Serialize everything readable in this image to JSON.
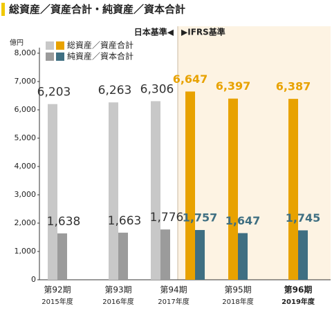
{
  "chart_data": {
    "type": "bar",
    "title": "総資産／資産合計・純資産／資本合計",
    "unit": "億円",
    "annotations": [
      "日本基準◀",
      "▶IFRS基準"
    ],
    "categories": [
      "第92期",
      "第93期",
      "第94期",
      null,
      "第95期",
      "第96期"
    ],
    "category_years": [
      "2015年度",
      "2016年度",
      "2017年度",
      null,
      "2018年度",
      "2019年度"
    ],
    "series": [
      {
        "name": "総資産／資産合計",
        "colors": [
          "#c8c8c8",
          "#c8c8c8",
          "#c8c8c8",
          "#e8a200",
          "#e8a200",
          "#e8a200"
        ],
        "label_colors": [
          "#333333",
          "#333333",
          "#333333",
          "#e8a200",
          "#e8a200",
          "#e8a200"
        ],
        "values": [
          6203,
          6263,
          6306,
          6647,
          6397,
          6387
        ],
        "value_labels": [
          "6,203",
          "6,263",
          "6,306",
          "6,647",
          "6,397",
          "6,387"
        ]
      },
      {
        "name": "純資産／資本合計",
        "colors": [
          "#9b9b9b",
          "#9b9b9b",
          "#9b9b9b",
          "#3f6f82",
          "#3f6f82",
          "#3f6f82"
        ],
        "label_colors": [
          "#333333",
          "#333333",
          "#333333",
          "#3f6f82",
          "#3f6f82",
          "#3f6f82"
        ],
        "values": [
          1638,
          1663,
          1776,
          1757,
          1647,
          1745
        ],
        "value_labels": [
          "1,638",
          "1,663",
          "1,776",
          "1,757",
          "1,647",
          "1,745"
        ]
      }
    ],
    "ylim": [
      0,
      8000
    ],
    "yticks": [
      0,
      {
        "value": 1000,
        "label": "1,000"
      },
      {
        "value": 2000,
        "label": "2,000"
      },
      {
        "value": 3000,
        "label": "3,000"
      },
      {
        "value": 4000,
        "label": "4,000"
      },
      {
        "value": 5000,
        "label": "5,000"
      },
      {
        "value": 6000,
        "label": "6,000"
      },
      {
        "value": 7000,
        "label": "7,000"
      },
      {
        "value": 8000,
        "label": "8,000"
      }
    ]
  }
}
